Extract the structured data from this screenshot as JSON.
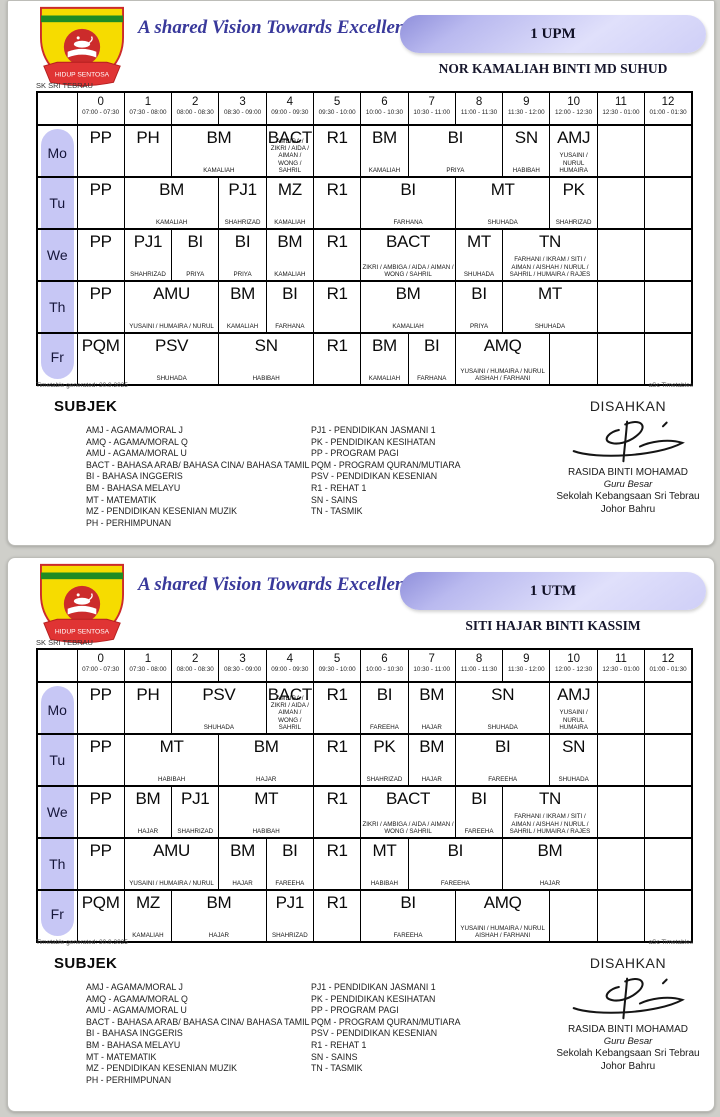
{
  "shared": {
    "slogan": "A shared Vision Towards Excellence",
    "school_label": "SK SRI TEBRAU",
    "logo_motto": "HIDUP SENTOSA",
    "generated_note": "Timetable generated: 30.9.2025",
    "brand_note": "aSc Timetables",
    "subjek_title": "SUBJEK",
    "disahkan_title": "DISAHKAN",
    "signatory": {
      "name": "RASIDA BINTI MOHAMAD",
      "title": "Guru Besar",
      "school": "Sekolah Kebangsaan Sri Tebrau",
      "city": "Johor Bahru"
    },
    "legend_left": [
      "AMJ - AGAMA/MORAL J",
      "AMQ - AGAMA/MORAL Q",
      "AMU - AGAMA/MORAL U",
      "BACT - BAHASA ARAB/ BAHASA CINA/ BAHASA TAMIL",
      "BI - BAHASA INGGERIS",
      "BM - BAHASA MELAYU",
      "MT - MATEMATIK",
      "MZ - PENDIDIKAN KESENIAN MUZIK",
      "PH - PERHIMPUNAN"
    ],
    "legend_right": [
      "PJ1 - PENDIDIKAN JASMANI 1",
      "PK - PENDIDIKAN KESIHATAN",
      "PP - PROGRAM PAGI",
      "PQM - PROGRAM QURAN/MUTIARA",
      "PSV - PENDIDIKAN KESENIAN",
      "R1 - REHAT 1",
      "SN - SAINS",
      "TN - TASMIK"
    ],
    "colors": {
      "pill_lavender": "#c7c7f5",
      "badge_lavender": "#c4c4f2",
      "slogan_blue": "#39399b",
      "page_background": "#cfcfca"
    }
  },
  "periods": [
    {
      "num": "0",
      "time": "07:00 - 07:30"
    },
    {
      "num": "1",
      "time": "07:30 - 08:00"
    },
    {
      "num": "2",
      "time": "08:00 - 08:30"
    },
    {
      "num": "3",
      "time": "08:30 - 09:00"
    },
    {
      "num": "4",
      "time": "09:00 - 09:30"
    },
    {
      "num": "5",
      "time": "09:30 - 10:00"
    },
    {
      "num": "6",
      "time": "10:00 - 10:30"
    },
    {
      "num": "7",
      "time": "10:30 - 11:00"
    },
    {
      "num": "8",
      "time": "11:00 - 11:30"
    },
    {
      "num": "9",
      "time": "11:30 - 12:00"
    },
    {
      "num": "10",
      "time": "12:00 - 12:30"
    },
    {
      "num": "11",
      "time": "12:30 - 01:00"
    },
    {
      "num": "12",
      "time": "01:00 - 01:30"
    }
  ],
  "timetables": [
    {
      "class_name": "1 UPM",
      "teacher_name": "NOR KAMALIAH BINTI MD SUHUD",
      "rows": [
        {
          "day": "Mo",
          "cells": [
            {
              "s": "PP",
              "t": "",
              "span": 1
            },
            {
              "s": "PH",
              "t": "",
              "span": 1
            },
            {
              "s": "BM",
              "t": "KAMALIAH",
              "span": 2
            },
            {
              "s": "BACT",
              "t": "AMBIGA / ZIKRI / AIDA / AIMAN / WONG / SAHRIL",
              "span": 1
            },
            {
              "s": "R1",
              "t": "",
              "span": 1
            },
            {
              "s": "BM",
              "t": "KAMALIAH",
              "span": 1
            },
            {
              "s": "BI",
              "t": "PRIYA",
              "span": 2
            },
            {
              "s": "SN",
              "t": "HABIBAH",
              "span": 1
            },
            {
              "s": "AMJ",
              "t": "YUSAINI / NURUL HUMAIRA",
              "span": 1
            },
            {
              "s": "",
              "t": "",
              "span": 1
            },
            {
              "s": "",
              "t": "",
              "span": 1
            }
          ]
        },
        {
          "day": "Tu",
          "cells": [
            {
              "s": "PP",
              "t": "",
              "span": 1
            },
            {
              "s": "BM",
              "t": "KAMALIAH",
              "span": 2
            },
            {
              "s": "PJ1",
              "t": "SHAHRIZAD",
              "span": 1
            },
            {
              "s": "MZ",
              "t": "KAMALIAH",
              "span": 1
            },
            {
              "s": "R1",
              "t": "",
              "span": 1
            },
            {
              "s": "BI",
              "t": "FARHANA",
              "span": 2
            },
            {
              "s": "MT",
              "t": "SHUHADA",
              "span": 2
            },
            {
              "s": "PK",
              "t": "SHAHRIZAD",
              "span": 1
            },
            {
              "s": "",
              "t": "",
              "span": 1
            },
            {
              "s": "",
              "t": "",
              "span": 1
            }
          ]
        },
        {
          "day": "We",
          "cells": [
            {
              "s": "PP",
              "t": "",
              "span": 1
            },
            {
              "s": "PJ1",
              "t": "SHAHRIZAD",
              "span": 1
            },
            {
              "s": "BI",
              "t": "PRIYA",
              "span": 1
            },
            {
              "s": "BI",
              "t": "PRIYA",
              "span": 1
            },
            {
              "s": "BM",
              "t": "KAMALIAH",
              "span": 1
            },
            {
              "s": "R1",
              "t": "",
              "span": 1
            },
            {
              "s": "BACT",
              "t": "ZIKRI / AMBIGA / AIDA / AIMAN / WONG / SAHRIL",
              "span": 2
            },
            {
              "s": "MT",
              "t": "SHUHADA",
              "span": 1
            },
            {
              "s": "TN",
              "t": "FARHANI / IKRAM / SITI / AIMAN / AISHAH / NURUL / SAHRIL / HUMAIRA / RAJES",
              "span": 2
            },
            {
              "s": "",
              "t": "",
              "span": 1
            },
            {
              "s": "",
              "t": "",
              "span": 1
            }
          ]
        },
        {
          "day": "Th",
          "cells": [
            {
              "s": "PP",
              "t": "",
              "span": 1
            },
            {
              "s": "AMU",
              "t": "YUSAINI / HUMAIRA / NURUL",
              "span": 2
            },
            {
              "s": "BM",
              "t": "KAMALIAH",
              "span": 1
            },
            {
              "s": "BI",
              "t": "FARHANA",
              "span": 1
            },
            {
              "s": "R1",
              "t": "",
              "span": 1
            },
            {
              "s": "BM",
              "t": "KAMALIAH",
              "span": 2
            },
            {
              "s": "BI",
              "t": "PRIYA",
              "span": 1
            },
            {
              "s": "MT",
              "t": "SHUHADA",
              "span": 2
            },
            {
              "s": "",
              "t": "",
              "span": 1
            },
            {
              "s": "",
              "t": "",
              "span": 1
            }
          ]
        },
        {
          "day": "Fr",
          "cells": [
            {
              "s": "PQM",
              "t": "",
              "span": 1
            },
            {
              "s": "PSV",
              "t": "SHUHADA",
              "span": 2
            },
            {
              "s": "SN",
              "t": "HABIBAH",
              "span": 2
            },
            {
              "s": "R1",
              "t": "",
              "span": 1
            },
            {
              "s": "BM",
              "t": "KAMALIAH",
              "span": 1
            },
            {
              "s": "BI",
              "t": "FARHANA",
              "span": 1
            },
            {
              "s": "AMQ",
              "t": "YUSAINI / HUMAIRA / NURUL AISHAH / FARHANI",
              "span": 2
            },
            {
              "s": "",
              "t": "",
              "span": 1
            },
            {
              "s": "",
              "t": "",
              "span": 1
            },
            {
              "s": "",
              "t": "",
              "span": 1
            }
          ]
        }
      ]
    },
    {
      "class_name": "1 UTM",
      "teacher_name": "SITI HAJAR BINTI KASSIM",
      "rows": [
        {
          "day": "Mo",
          "cells": [
            {
              "s": "PP",
              "t": "",
              "span": 1
            },
            {
              "s": "PH",
              "t": "",
              "span": 1
            },
            {
              "s": "PSV",
              "t": "SHUHADA",
              "span": 2
            },
            {
              "s": "BACT",
              "t": "AMBIGA / ZIKRI / AIDA / AIMAN / WONG / SAHRIL",
              "span": 1
            },
            {
              "s": "R1",
              "t": "",
              "span": 1
            },
            {
              "s": "BI",
              "t": "FAREEHA",
              "span": 1
            },
            {
              "s": "BM",
              "t": "HAJAR",
              "span": 1
            },
            {
              "s": "SN",
              "t": "SHUHADA",
              "span": 2
            },
            {
              "s": "AMJ",
              "t": "YUSAINI / NURUL HUMAIRA",
              "span": 1
            },
            {
              "s": "",
              "t": "",
              "span": 1
            },
            {
              "s": "",
              "t": "",
              "span": 1
            }
          ]
        },
        {
          "day": "Tu",
          "cells": [
            {
              "s": "PP",
              "t": "",
              "span": 1
            },
            {
              "s": "MT",
              "t": "HABIBAH",
              "span": 2
            },
            {
              "s": "BM",
              "t": "HAJAR",
              "span": 2
            },
            {
              "s": "R1",
              "t": "",
              "span": 1
            },
            {
              "s": "PK",
              "t": "SHAHRIZAD",
              "span": 1
            },
            {
              "s": "BM",
              "t": "HAJAR",
              "span": 1
            },
            {
              "s": "BI",
              "t": "FAREEHA",
              "span": 2
            },
            {
              "s": "SN",
              "t": "SHUHADA",
              "span": 1
            },
            {
              "s": "",
              "t": "",
              "span": 1
            },
            {
              "s": "",
              "t": "",
              "span": 1
            }
          ]
        },
        {
          "day": "We",
          "cells": [
            {
              "s": "PP",
              "t": "",
              "span": 1
            },
            {
              "s": "BM",
              "t": "HAJAR",
              "span": 1
            },
            {
              "s": "PJ1",
              "t": "SHAHRIZAD",
              "span": 1
            },
            {
              "s": "MT",
              "t": "HABIBAH",
              "span": 2
            },
            {
              "s": "R1",
              "t": "",
              "span": 1
            },
            {
              "s": "BACT",
              "t": "ZIKRI / AMBIGA / AIDA / AIMAN / WONG / SAHRIL",
              "span": 2
            },
            {
              "s": "BI",
              "t": "FAREEHA",
              "span": 1
            },
            {
              "s": "TN",
              "t": "FARHANI / IKRAM / SITI / AIMAN / AISHAH / NURUL / SAHRIL / HUMAIRA / RAJES",
              "span": 2
            },
            {
              "s": "",
              "t": "",
              "span": 1
            },
            {
              "s": "",
              "t": "",
              "span": 1
            }
          ]
        },
        {
          "day": "Th",
          "cells": [
            {
              "s": "PP",
              "t": "",
              "span": 1
            },
            {
              "s": "AMU",
              "t": "YUSAINI / HUMAIRA / NURUL",
              "span": 2
            },
            {
              "s": "BM",
              "t": "HAJAR",
              "span": 1
            },
            {
              "s": "BI",
              "t": "FAREEHA",
              "span": 1
            },
            {
              "s": "R1",
              "t": "",
              "span": 1
            },
            {
              "s": "MT",
              "t": "HABIBAH",
              "span": 1
            },
            {
              "s": "BI",
              "t": "FAREEHA",
              "span": 2
            },
            {
              "s": "BM",
              "t": "HAJAR",
              "span": 2
            },
            {
              "s": "",
              "t": "",
              "span": 1
            },
            {
              "s": "",
              "t": "",
              "span": 1
            }
          ]
        },
        {
          "day": "Fr",
          "cells": [
            {
              "s": "PQM",
              "t": "",
              "span": 1
            },
            {
              "s": "MZ",
              "t": "KAMALIAH",
              "span": 1
            },
            {
              "s": "BM",
              "t": "HAJAR",
              "span": 2
            },
            {
              "s": "PJ1",
              "t": "SHAHRIZAD",
              "span": 1
            },
            {
              "s": "R1",
              "t": "",
              "span": 1
            },
            {
              "s": "BI",
              "t": "FAREEHA",
              "span": 2
            },
            {
              "s": "AMQ",
              "t": "YUSAINI / HUMAIRA / NURUL AISHAH / FARHANI",
              "span": 2
            },
            {
              "s": "",
              "t": "",
              "span": 1
            },
            {
              "s": "",
              "t": "",
              "span": 1
            },
            {
              "s": "",
              "t": "",
              "span": 1
            }
          ]
        }
      ]
    }
  ]
}
